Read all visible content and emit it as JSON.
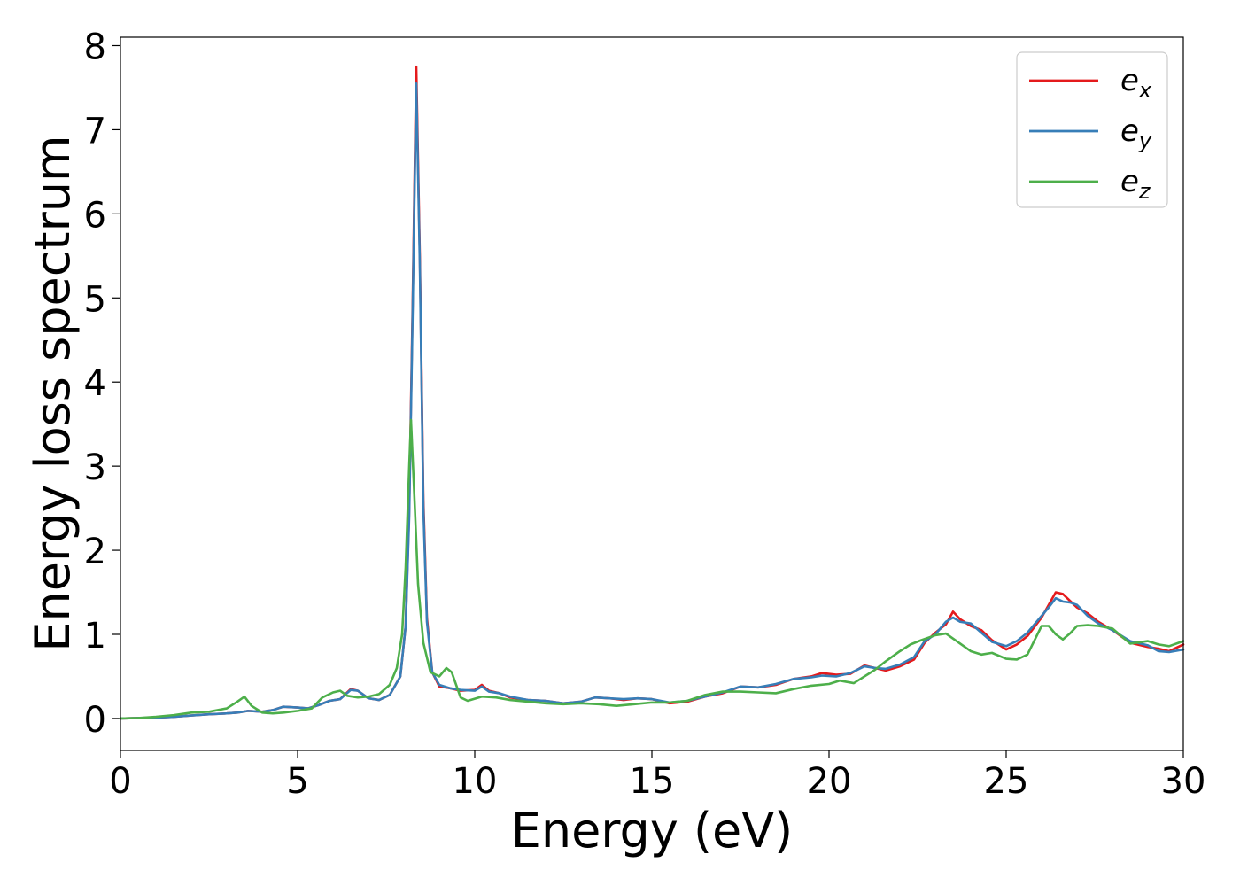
{
  "chart_data": {
    "type": "line",
    "title": "",
    "xlabel": "Energy (eV)",
    "ylabel": "Energy loss spectrum",
    "xlim": [
      0,
      30
    ],
    "ylim": [
      -0.38,
      8.1
    ],
    "xticks": [
      "0",
      "5",
      "10",
      "15",
      "20",
      "25",
      "30"
    ],
    "yticks": [
      "0",
      "1",
      "2",
      "3",
      "4",
      "5",
      "6",
      "7",
      "8"
    ],
    "grid": false,
    "legend_position": "top-right",
    "series": [
      {
        "name": "e_x",
        "label_main": "e",
        "label_sub": "x",
        "color": "#e41a1c",
        "points": [
          [
            0,
            0
          ],
          [
            0.5,
            0.005
          ],
          [
            1,
            0.01
          ],
          [
            1.5,
            0.02
          ],
          [
            2,
            0.035
          ],
          [
            2.5,
            0.05
          ],
          [
            3,
            0.06
          ],
          [
            3.3,
            0.07
          ],
          [
            3.6,
            0.09
          ],
          [
            4,
            0.08
          ],
          [
            4.3,
            0.1
          ],
          [
            4.6,
            0.14
          ],
          [
            5,
            0.13
          ],
          [
            5.3,
            0.12
          ],
          [
            5.6,
            0.16
          ],
          [
            5.9,
            0.21
          ],
          [
            6.2,
            0.23
          ],
          [
            6.5,
            0.35
          ],
          [
            6.7,
            0.33
          ],
          [
            7.0,
            0.24
          ],
          [
            7.3,
            0.22
          ],
          [
            7.6,
            0.28
          ],
          [
            7.9,
            0.5
          ],
          [
            8.05,
            1.1
          ],
          [
            8.15,
            2.5
          ],
          [
            8.25,
            5.0
          ],
          [
            8.35,
            7.75
          ],
          [
            8.45,
            5.5
          ],
          [
            8.55,
            2.6
          ],
          [
            8.65,
            1.2
          ],
          [
            8.8,
            0.55
          ],
          [
            9.0,
            0.38
          ],
          [
            9.3,
            0.36
          ],
          [
            9.6,
            0.33
          ],
          [
            10.0,
            0.34
          ],
          [
            10.2,
            0.4
          ],
          [
            10.4,
            0.33
          ],
          [
            10.7,
            0.3
          ],
          [
            11.0,
            0.25
          ],
          [
            11.5,
            0.22
          ],
          [
            12.0,
            0.21
          ],
          [
            12.5,
            0.18
          ],
          [
            13.0,
            0.2
          ],
          [
            13.4,
            0.25
          ],
          [
            13.8,
            0.24
          ],
          [
            14.2,
            0.22
          ],
          [
            14.6,
            0.24
          ],
          [
            15.0,
            0.23
          ],
          [
            15.5,
            0.18
          ],
          [
            16.0,
            0.2
          ],
          [
            16.5,
            0.26
          ],
          [
            17.0,
            0.3
          ],
          [
            17.5,
            0.38
          ],
          [
            18.0,
            0.37
          ],
          [
            18.5,
            0.4
          ],
          [
            19.0,
            0.47
          ],
          [
            19.5,
            0.5
          ],
          [
            19.8,
            0.54
          ],
          [
            20.2,
            0.52
          ],
          [
            20.6,
            0.53
          ],
          [
            21.0,
            0.63
          ],
          [
            21.3,
            0.6
          ],
          [
            21.6,
            0.57
          ],
          [
            22.0,
            0.62
          ],
          [
            22.4,
            0.7
          ],
          [
            22.7,
            0.9
          ],
          [
            23.0,
            1.02
          ],
          [
            23.3,
            1.12
          ],
          [
            23.5,
            1.27
          ],
          [
            23.7,
            1.18
          ],
          [
            24.0,
            1.1
          ],
          [
            24.3,
            1.05
          ],
          [
            24.6,
            0.93
          ],
          [
            25.0,
            0.82
          ],
          [
            25.3,
            0.88
          ],
          [
            25.6,
            0.98
          ],
          [
            26.0,
            1.2
          ],
          [
            26.2,
            1.35
          ],
          [
            26.4,
            1.5
          ],
          [
            26.6,
            1.48
          ],
          [
            26.8,
            1.4
          ],
          [
            27.0,
            1.32
          ],
          [
            27.3,
            1.25
          ],
          [
            27.6,
            1.15
          ],
          [
            28.0,
            1.05
          ],
          [
            28.5,
            0.9
          ],
          [
            29.0,
            0.85
          ],
          [
            29.3,
            0.83
          ],
          [
            29.6,
            0.8
          ],
          [
            30.0,
            0.88
          ]
        ]
      },
      {
        "name": "e_y",
        "label_main": "e",
        "label_sub": "y",
        "color": "#377eb8",
        "points": [
          [
            0,
            0
          ],
          [
            0.5,
            0.005
          ],
          [
            1,
            0.01
          ],
          [
            1.5,
            0.02
          ],
          [
            2,
            0.035
          ],
          [
            2.5,
            0.05
          ],
          [
            3,
            0.06
          ],
          [
            3.3,
            0.07
          ],
          [
            3.6,
            0.09
          ],
          [
            4,
            0.08
          ],
          [
            4.3,
            0.1
          ],
          [
            4.6,
            0.14
          ],
          [
            5,
            0.13
          ],
          [
            5.3,
            0.12
          ],
          [
            5.6,
            0.16
          ],
          [
            5.9,
            0.21
          ],
          [
            6.2,
            0.23
          ],
          [
            6.5,
            0.34
          ],
          [
            6.7,
            0.33
          ],
          [
            7.0,
            0.24
          ],
          [
            7.3,
            0.22
          ],
          [
            7.6,
            0.28
          ],
          [
            7.9,
            0.5
          ],
          [
            8.05,
            1.1
          ],
          [
            8.15,
            2.4
          ],
          [
            8.25,
            4.9
          ],
          [
            8.35,
            7.55
          ],
          [
            8.45,
            5.4
          ],
          [
            8.55,
            2.5
          ],
          [
            8.65,
            1.15
          ],
          [
            8.8,
            0.55
          ],
          [
            9.0,
            0.4
          ],
          [
            9.3,
            0.36
          ],
          [
            9.6,
            0.34
          ],
          [
            10.0,
            0.33
          ],
          [
            10.2,
            0.38
          ],
          [
            10.4,
            0.32
          ],
          [
            10.7,
            0.3
          ],
          [
            11.0,
            0.26
          ],
          [
            11.5,
            0.22
          ],
          [
            12.0,
            0.21
          ],
          [
            12.5,
            0.18
          ],
          [
            13.0,
            0.2
          ],
          [
            13.4,
            0.25
          ],
          [
            13.8,
            0.24
          ],
          [
            14.2,
            0.23
          ],
          [
            14.6,
            0.24
          ],
          [
            15.0,
            0.23
          ],
          [
            15.5,
            0.19
          ],
          [
            16.0,
            0.21
          ],
          [
            16.5,
            0.26
          ],
          [
            17.0,
            0.31
          ],
          [
            17.5,
            0.38
          ],
          [
            18.0,
            0.37
          ],
          [
            18.5,
            0.41
          ],
          [
            19.0,
            0.47
          ],
          [
            19.5,
            0.49
          ],
          [
            19.8,
            0.51
          ],
          [
            20.2,
            0.5
          ],
          [
            20.6,
            0.54
          ],
          [
            21.0,
            0.62
          ],
          [
            21.3,
            0.6
          ],
          [
            21.6,
            0.59
          ],
          [
            22.0,
            0.64
          ],
          [
            22.4,
            0.73
          ],
          [
            22.7,
            0.92
          ],
          [
            23.0,
            1.0
          ],
          [
            23.3,
            1.15
          ],
          [
            23.5,
            1.2
          ],
          [
            23.7,
            1.15
          ],
          [
            24.0,
            1.13
          ],
          [
            24.3,
            1.02
          ],
          [
            24.6,
            0.91
          ],
          [
            25.0,
            0.86
          ],
          [
            25.3,
            0.92
          ],
          [
            25.6,
            1.02
          ],
          [
            26.0,
            1.22
          ],
          [
            26.2,
            1.32
          ],
          [
            26.4,
            1.43
          ],
          [
            26.6,
            1.39
          ],
          [
            26.8,
            1.38
          ],
          [
            27.0,
            1.35
          ],
          [
            27.3,
            1.22
          ],
          [
            27.6,
            1.13
          ],
          [
            28.0,
            1.05
          ],
          [
            28.5,
            0.92
          ],
          [
            29.0,
            0.87
          ],
          [
            29.3,
            0.8
          ],
          [
            29.6,
            0.79
          ],
          [
            30.0,
            0.82
          ]
        ]
      },
      {
        "name": "e_z",
        "label_main": "e",
        "label_sub": "z",
        "color": "#4daf4a",
        "points": [
          [
            0,
            0
          ],
          [
            0.5,
            0.005
          ],
          [
            1,
            0.02
          ],
          [
            1.5,
            0.04
          ],
          [
            2,
            0.07
          ],
          [
            2.5,
            0.08
          ],
          [
            3,
            0.12
          ],
          [
            3.3,
            0.2
          ],
          [
            3.5,
            0.26
          ],
          [
            3.7,
            0.15
          ],
          [
            4.0,
            0.07
          ],
          [
            4.3,
            0.06
          ],
          [
            4.6,
            0.07
          ],
          [
            5.0,
            0.09
          ],
          [
            5.4,
            0.12
          ],
          [
            5.7,
            0.25
          ],
          [
            6.0,
            0.31
          ],
          [
            6.2,
            0.33
          ],
          [
            6.4,
            0.27
          ],
          [
            6.7,
            0.25
          ],
          [
            7.0,
            0.26
          ],
          [
            7.3,
            0.29
          ],
          [
            7.6,
            0.4
          ],
          [
            7.8,
            0.6
          ],
          [
            7.95,
            1.0
          ],
          [
            8.05,
            1.8
          ],
          [
            8.15,
            3.0
          ],
          [
            8.2,
            3.55
          ],
          [
            8.3,
            2.6
          ],
          [
            8.4,
            1.6
          ],
          [
            8.55,
            0.9
          ],
          [
            8.75,
            0.55
          ],
          [
            9.0,
            0.5
          ],
          [
            9.2,
            0.6
          ],
          [
            9.35,
            0.55
          ],
          [
            9.6,
            0.25
          ],
          [
            9.8,
            0.21
          ],
          [
            10.2,
            0.26
          ],
          [
            10.6,
            0.25
          ],
          [
            11.0,
            0.22
          ],
          [
            11.5,
            0.2
          ],
          [
            12.0,
            0.18
          ],
          [
            12.5,
            0.17
          ],
          [
            13.0,
            0.18
          ],
          [
            13.5,
            0.17
          ],
          [
            14.0,
            0.15
          ],
          [
            14.5,
            0.17
          ],
          [
            15.0,
            0.19
          ],
          [
            15.5,
            0.19
          ],
          [
            16.0,
            0.21
          ],
          [
            16.5,
            0.28
          ],
          [
            17.0,
            0.32
          ],
          [
            17.5,
            0.32
          ],
          [
            18.0,
            0.31
          ],
          [
            18.5,
            0.3
          ],
          [
            19.0,
            0.35
          ],
          [
            19.5,
            0.39
          ],
          [
            20.0,
            0.41
          ],
          [
            20.3,
            0.45
          ],
          [
            20.7,
            0.42
          ],
          [
            21.0,
            0.5
          ],
          [
            21.3,
            0.58
          ],
          [
            21.6,
            0.68
          ],
          [
            22.0,
            0.8
          ],
          [
            22.3,
            0.88
          ],
          [
            22.6,
            0.93
          ],
          [
            23.0,
            0.99
          ],
          [
            23.3,
            1.01
          ],
          [
            23.6,
            0.92
          ],
          [
            24.0,
            0.8
          ],
          [
            24.3,
            0.76
          ],
          [
            24.6,
            0.78
          ],
          [
            25.0,
            0.71
          ],
          [
            25.3,
            0.7
          ],
          [
            25.6,
            0.76
          ],
          [
            26.0,
            1.1
          ],
          [
            26.2,
            1.1
          ],
          [
            26.4,
            1.0
          ],
          [
            26.6,
            0.94
          ],
          [
            26.8,
            1.01
          ],
          [
            27.0,
            1.1
          ],
          [
            27.3,
            1.11
          ],
          [
            27.6,
            1.1
          ],
          [
            28.0,
            1.07
          ],
          [
            28.5,
            0.89
          ],
          [
            29.0,
            0.92
          ],
          [
            29.3,
            0.88
          ],
          [
            29.6,
            0.86
          ],
          [
            30.0,
            0.92
          ]
        ]
      }
    ]
  }
}
